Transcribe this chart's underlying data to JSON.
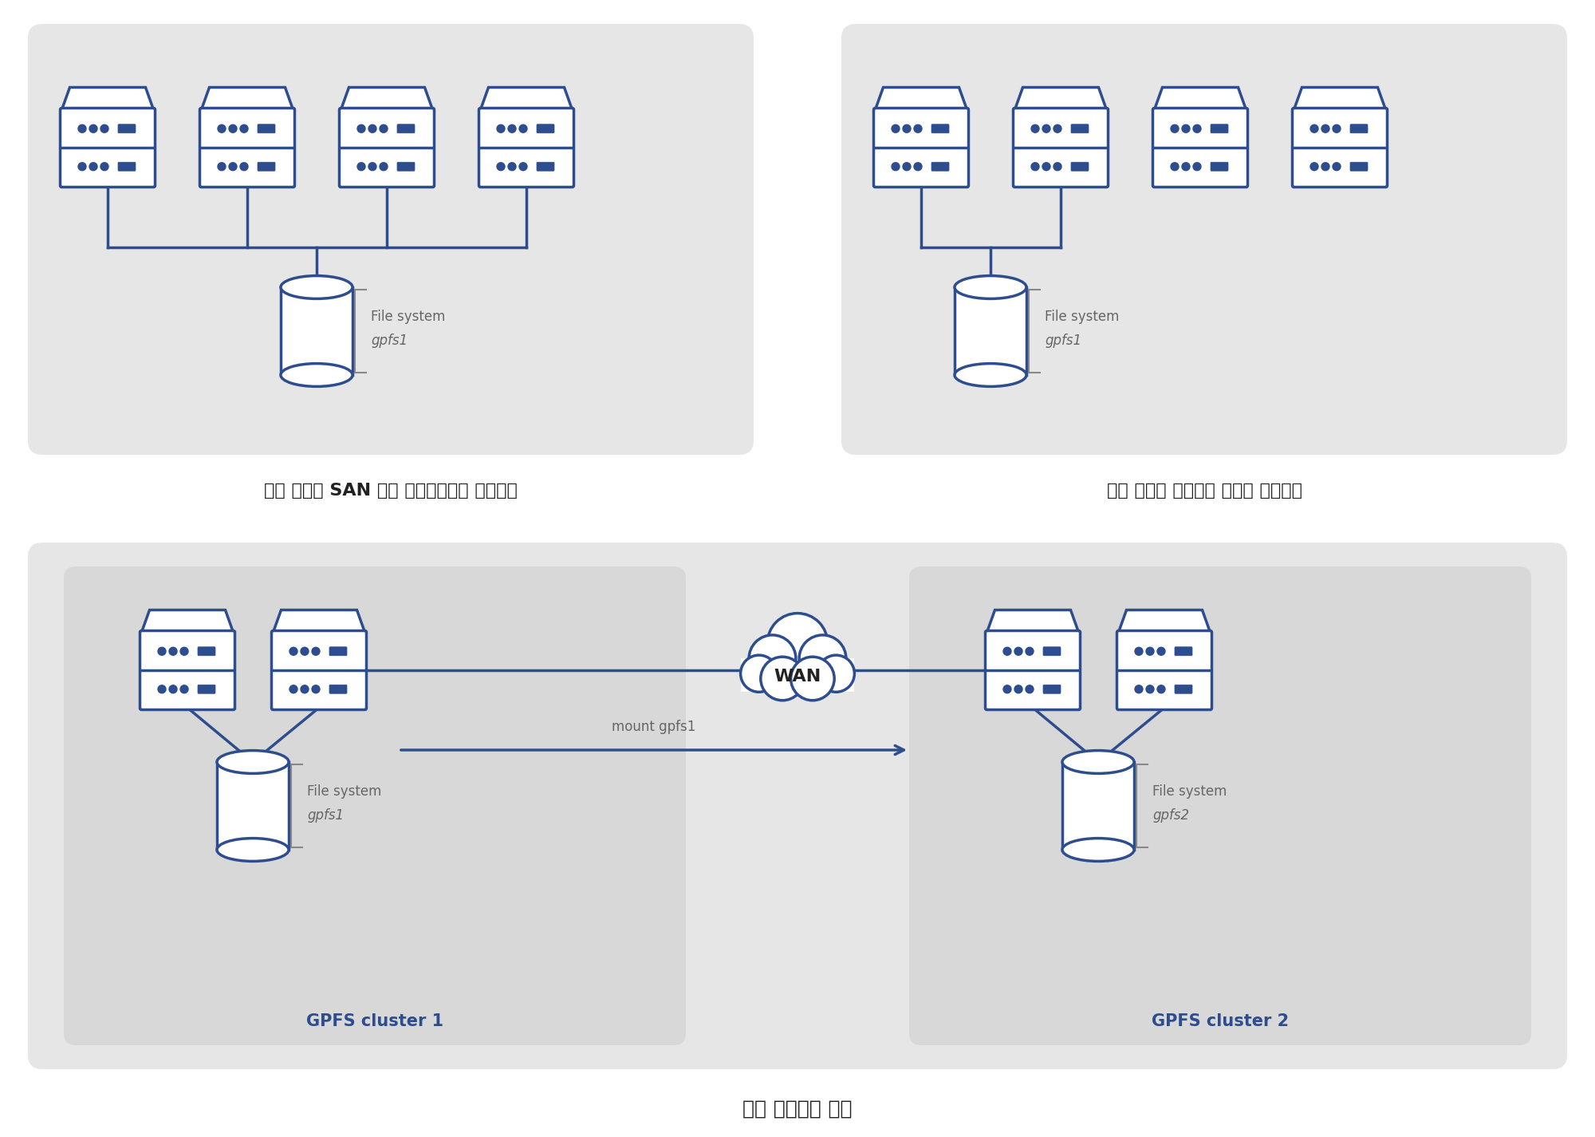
{
  "bg_color": "#ffffff",
  "panel_color": "#e6e6e6",
  "subpanel_color": "#d8d8d8",
  "server_fill": "#ffffff",
  "server_stroke": "#2e4d8e",
  "disk_fill": "#ffffff",
  "disk_stroke": "#2e4d8e",
  "line_color": "#2e4d8e",
  "text_color": "#222222",
  "label_color": "#666666",
  "cluster_label_color": "#2e4d8e",
  "title1": "모든 노드에 SAN 연결 디스크가있는 클러스터",
  "title2": "일부 노드가 디스크에 연결된 클러스터",
  "title3": "다중 클러스터 구성",
  "fs_label1": "File system",
  "fs_name1": "gpfs1",
  "fs_label2": "File system",
  "fs_name2": "gpfs1",
  "fs_label3": "File system",
  "fs_name3": "gpfs1",
  "fs_label4": "File system",
  "fs_name4": "gpfs2",
  "cluster1_label": "GPFS cluster 1",
  "cluster2_label": "GPFS cluster 2",
  "wan_label": "WAN",
  "mount_label": "mount gpfs1"
}
